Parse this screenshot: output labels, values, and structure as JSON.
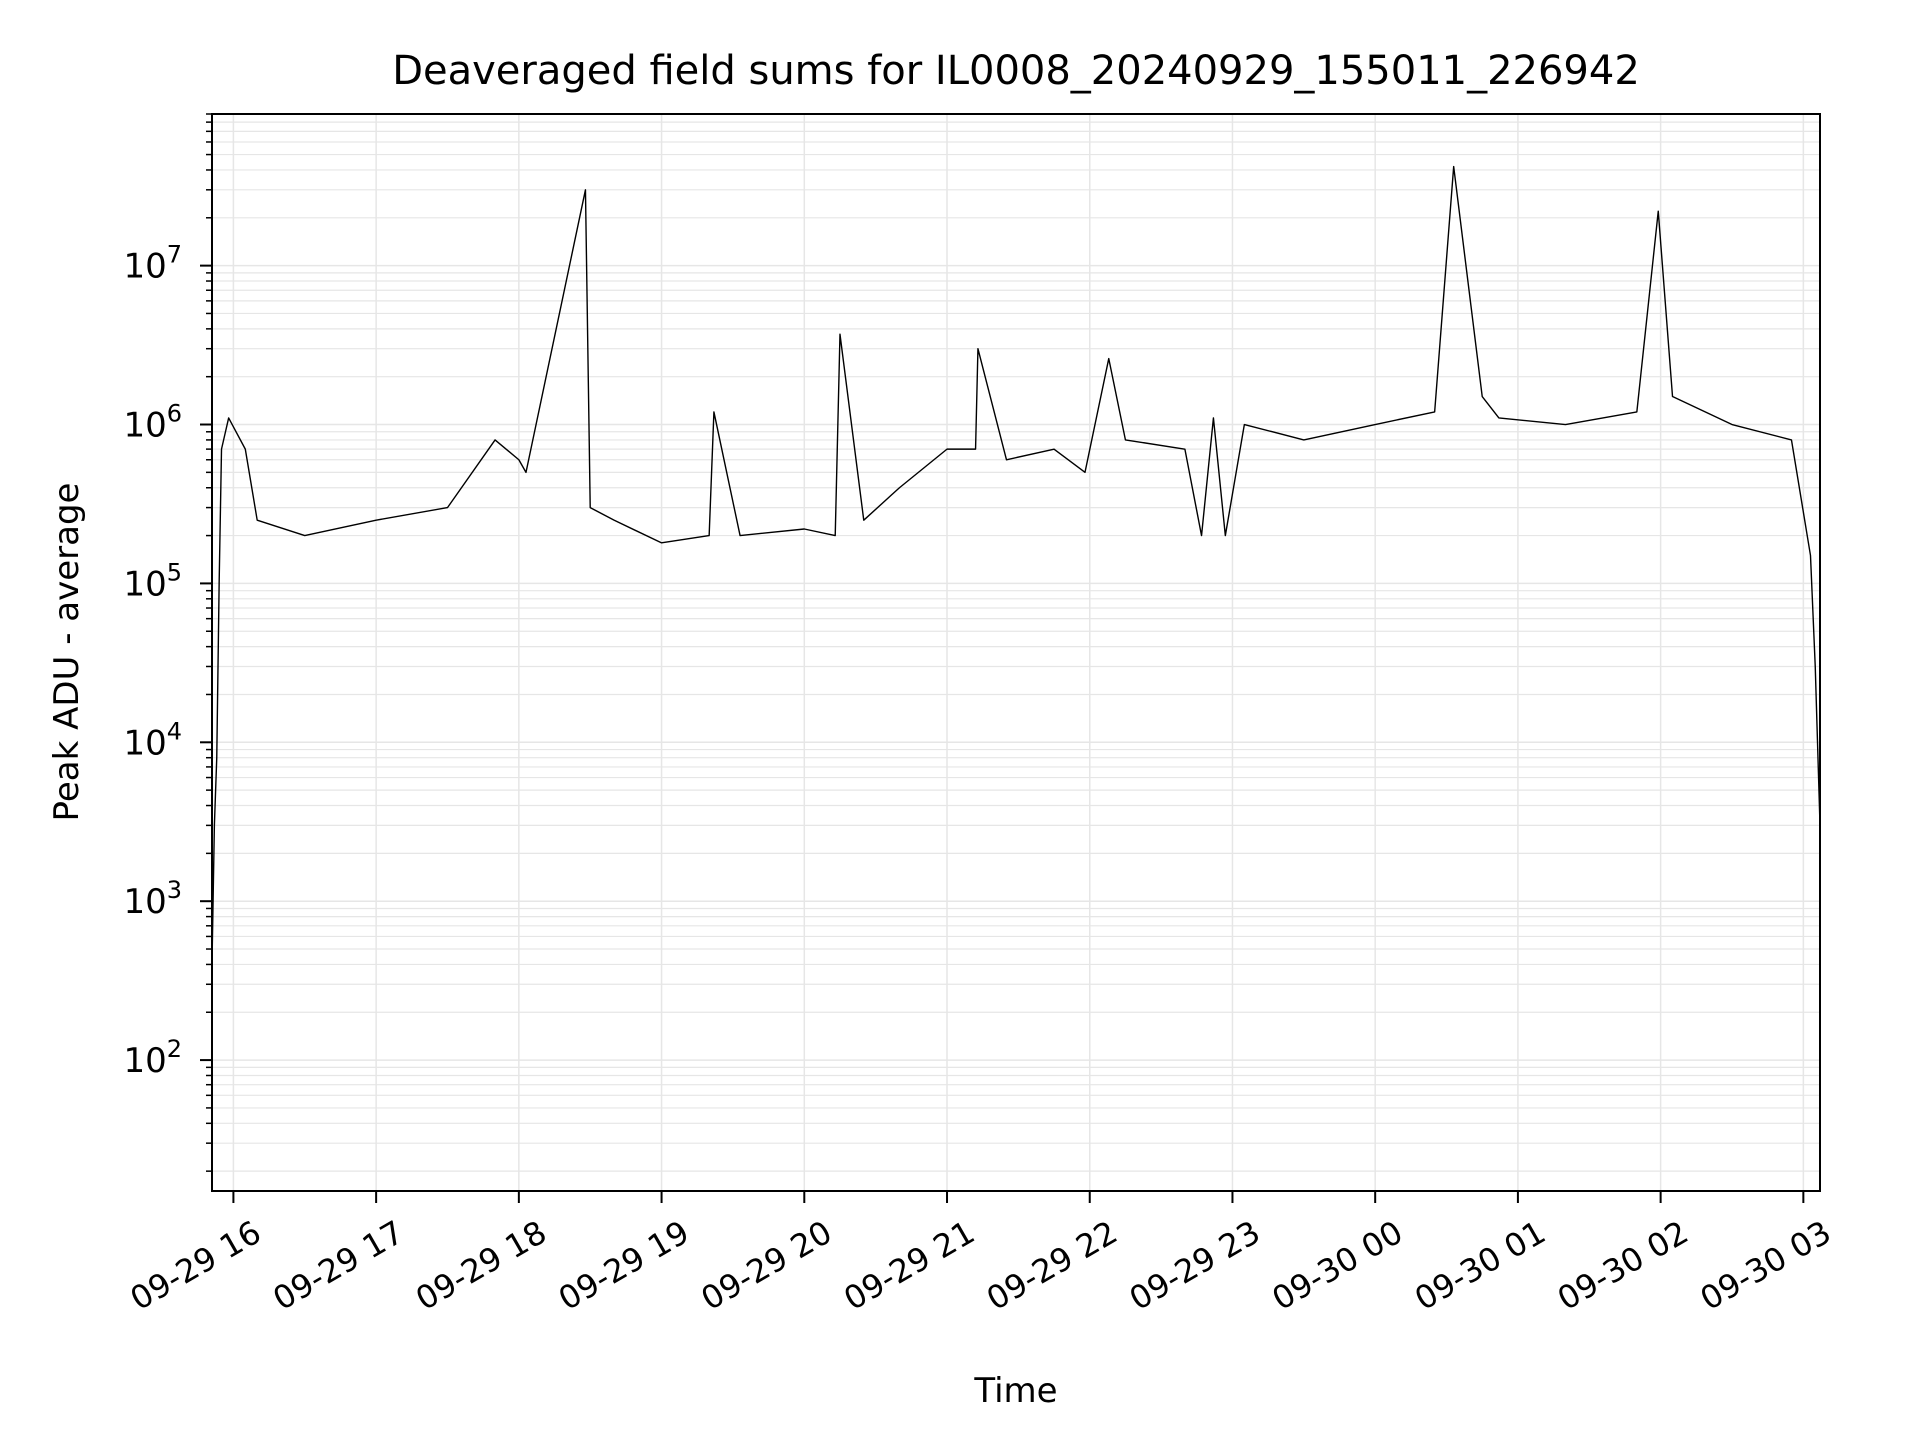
{
  "chart_data": {
    "type": "line",
    "title": "Deaveraged field sums for IL0008_20240929_155011_226942",
    "xlabel": "Time",
    "ylabel": "Peak ADU - average",
    "yscale": "log",
    "ylim": [
      15,
      90000000
    ],
    "xlim": [
      "2024-09-29 15:51",
      "2024-09-30 03:07"
    ],
    "grid": true,
    "legend": "none",
    "line_color": "#000000",
    "grid_color": "#e6e6e6",
    "x_ticks": [
      {
        "t": "2024-09-29 16:00",
        "label": "09-29 16"
      },
      {
        "t": "2024-09-29 17:00",
        "label": "09-29 17"
      },
      {
        "t": "2024-09-29 18:00",
        "label": "09-29 18"
      },
      {
        "t": "2024-09-29 19:00",
        "label": "09-29 19"
      },
      {
        "t": "2024-09-29 20:00",
        "label": "09-29 20"
      },
      {
        "t": "2024-09-29 21:00",
        "label": "09-29 21"
      },
      {
        "t": "2024-09-29 22:00",
        "label": "09-29 22"
      },
      {
        "t": "2024-09-29 23:00",
        "label": "09-29 23"
      },
      {
        "t": "2024-09-30 00:00",
        "label": "09-30 00"
      },
      {
        "t": "2024-09-30 01:00",
        "label": "09-30 01"
      },
      {
        "t": "2024-09-30 02:00",
        "label": "09-30 02"
      },
      {
        "t": "2024-09-30 03:00",
        "label": "09-30 03"
      }
    ],
    "y_ticks": [
      {
        "value": 100,
        "base": "10",
        "exp": "2"
      },
      {
        "value": 1000,
        "base": "10",
        "exp": "3"
      },
      {
        "value": 10000,
        "base": "10",
        "exp": "4"
      },
      {
        "value": 100000,
        "base": "10",
        "exp": "5"
      },
      {
        "value": 1000000,
        "base": "10",
        "exp": "6"
      },
      {
        "value": 10000000,
        "base": "10",
        "exp": "7"
      }
    ],
    "series": [
      {
        "points": [
          [
            "2024-09-29 15:51",
            400
          ],
          [
            "2024-09-29 15:52",
            3000
          ],
          [
            "2024-09-29 15:53",
            8000
          ],
          [
            "2024-09-29 15:54",
            100000
          ],
          [
            "2024-09-29 15:55",
            700000
          ],
          [
            "2024-09-29 15:58",
            1100000
          ],
          [
            "2024-09-29 16:05",
            700000
          ],
          [
            "2024-09-29 16:10",
            250000
          ],
          [
            "2024-09-29 16:30",
            200000
          ],
          [
            "2024-09-29 17:00",
            250000
          ],
          [
            "2024-09-29 17:30",
            300000
          ],
          [
            "2024-09-29 17:50",
            800000
          ],
          [
            "2024-09-29 18:00",
            600000
          ],
          [
            "2024-09-29 18:03",
            500000
          ],
          [
            "2024-09-29 18:28",
            30000000
          ],
          [
            "2024-09-29 18:30",
            300000
          ],
          [
            "2024-09-29 18:40",
            250000
          ],
          [
            "2024-09-29 19:00",
            180000
          ],
          [
            "2024-09-29 19:20",
            200000
          ],
          [
            "2024-09-29 19:22",
            1200000
          ],
          [
            "2024-09-29 19:33",
            200000
          ],
          [
            "2024-09-29 20:00",
            220000
          ],
          [
            "2024-09-29 20:13",
            200000
          ],
          [
            "2024-09-29 20:15",
            3700000
          ],
          [
            "2024-09-29 20:25",
            250000
          ],
          [
            "2024-09-29 20:40",
            400000
          ],
          [
            "2024-09-29 21:00",
            700000
          ],
          [
            "2024-09-29 21:12",
            700000
          ],
          [
            "2024-09-29 21:13",
            3000000
          ],
          [
            "2024-09-29 21:25",
            600000
          ],
          [
            "2024-09-29 21:45",
            700000
          ],
          [
            "2024-09-29 21:58",
            500000
          ],
          [
            "2024-09-29 22:08",
            2600000
          ],
          [
            "2024-09-29 22:15",
            800000
          ],
          [
            "2024-09-29 22:40",
            700000
          ],
          [
            "2024-09-29 22:47",
            200000
          ],
          [
            "2024-09-29 22:52",
            1100000
          ],
          [
            "2024-09-29 22:57",
            200000
          ],
          [
            "2024-09-29 23:05",
            1000000
          ],
          [
            "2024-09-29 23:30",
            800000
          ],
          [
            "2024-09-30 00:00",
            1000000
          ],
          [
            "2024-09-30 00:25",
            1200000
          ],
          [
            "2024-09-30 00:33",
            42000000
          ],
          [
            "2024-09-30 00:45",
            1500000
          ],
          [
            "2024-09-30 00:52",
            1100000
          ],
          [
            "2024-09-30 01:20",
            1000000
          ],
          [
            "2024-09-30 01:50",
            1200000
          ],
          [
            "2024-09-30 01:59",
            22000000
          ],
          [
            "2024-09-30 02:05",
            1500000
          ],
          [
            "2024-09-30 02:30",
            1000000
          ],
          [
            "2024-09-30 02:55",
            800000
          ],
          [
            "2024-09-30 03:03",
            150000
          ],
          [
            "2024-09-30 03:05",
            30000
          ],
          [
            "2024-09-30 03:07",
            3000
          ]
        ]
      }
    ]
  }
}
